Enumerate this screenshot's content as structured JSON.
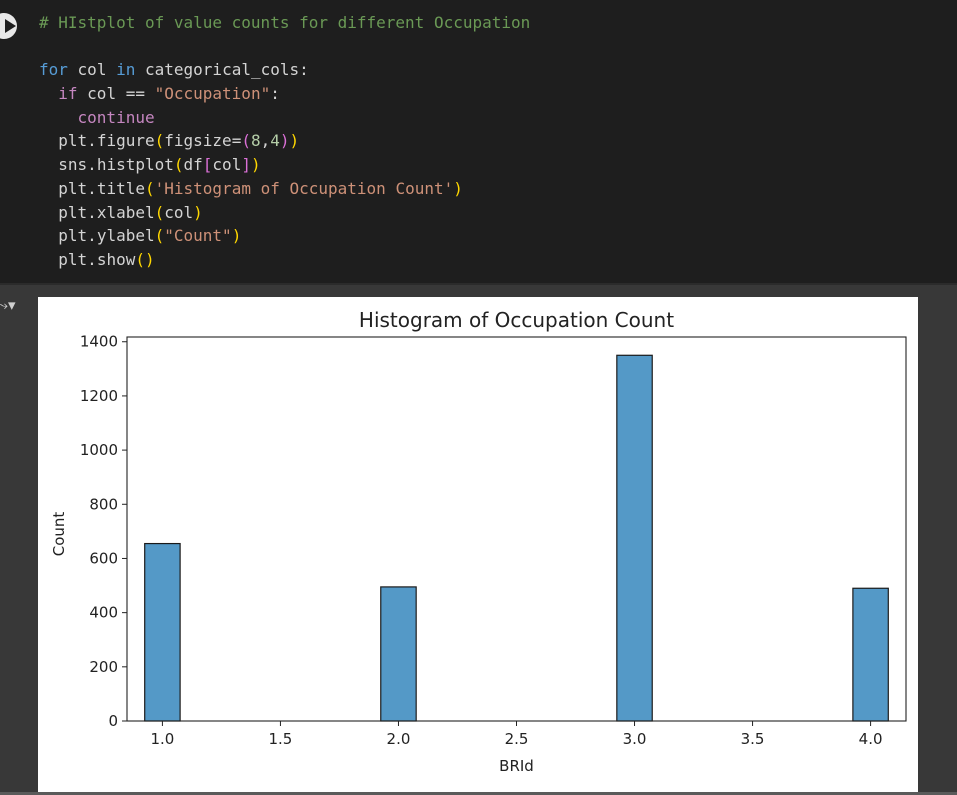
{
  "code_cell": {
    "lines": [
      "# HIstplot of value counts for different Occupation",
      "",
      "for col in categorical_cols:",
      "  if col == \"Occupation\":",
      "    continue",
      "  plt.figure(figsize=(8,4))",
      "  sns.histplot(df[col])",
      "  plt.title('Histogram of Occupation Count')",
      "  plt.xlabel(col)",
      "  plt.ylabel(\"Count\")",
      "  plt.show()"
    ]
  },
  "colors": {
    "bar_fill": "#5499c7",
    "bar_stroke": "#1a1a1a",
    "cell_bg": "#1e1e1e",
    "output_bg": "#383838"
  },
  "chart_data": {
    "type": "bar",
    "title": "Histogram of Occupation Count",
    "xlabel": "BRId",
    "ylabel": "Count",
    "bin_width": 0.15,
    "x": [
      1.0,
      2.0,
      3.0,
      4.0
    ],
    "values": [
      655,
      495,
      1350,
      490
    ],
    "xlim": [
      0.85,
      4.15
    ],
    "ylim": [
      0,
      1417.5
    ],
    "xticks": [
      "1.0",
      "1.5",
      "2.0",
      "2.5",
      "3.0",
      "3.5",
      "4.0"
    ],
    "xtick_values": [
      1.0,
      1.5,
      2.0,
      2.5,
      3.0,
      3.5,
      4.0
    ],
    "yticks": [
      "0",
      "200",
      "400",
      "600",
      "800",
      "1000",
      "1200",
      "1400"
    ],
    "ytick_values": [
      0,
      200,
      400,
      600,
      800,
      1000,
      1200,
      1400
    ],
    "grid": false,
    "legend": "none"
  }
}
